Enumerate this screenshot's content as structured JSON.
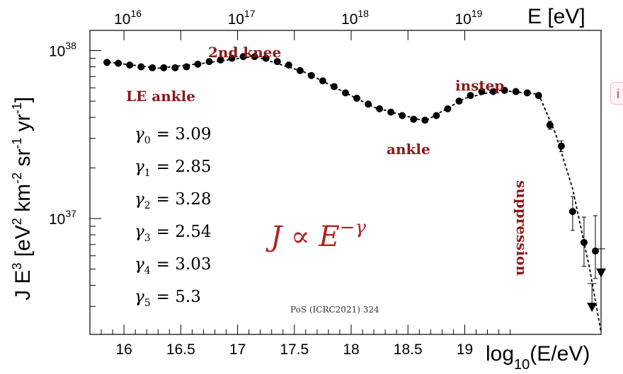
{
  "chart_data": {
    "type": "scatter",
    "title": "",
    "xlabel": "log_10(E/eV)",
    "xlabel_main": "log",
    "xlabel_sub": "10",
    "xlabel_tail": "(E/eV)",
    "top_axis_label": "E [eV]",
    "ylabel": "J E^3 [eV^2 km^-2 sr^-1 yr^-1]",
    "ylabel_parts": [
      "J E",
      "3",
      " [eV",
      "2",
      " km",
      "-2",
      " sr",
      "-1",
      " yr",
      "-1",
      "]"
    ],
    "xlim": [
      15.7,
      20.2
    ],
    "ylim_log10": [
      36.31,
      38.12
    ],
    "y_scale": "log",
    "grid": false,
    "x_ticks": [
      "16",
      "16.5",
      "17",
      "17.5",
      "18",
      "18.5",
      "19"
    ],
    "x_tick_values": [
      16,
      16.5,
      17,
      17.5,
      18,
      18.5,
      19
    ],
    "top_ticks": [
      {
        "base": "10",
        "exp": "16",
        "log": 16
      },
      {
        "base": "10",
        "exp": "17",
        "log": 17
      },
      {
        "base": "10",
        "exp": "18",
        "log": 18
      },
      {
        "base": "10",
        "exp": "19",
        "log": 19
      }
    ],
    "y_ticks": [
      {
        "base": "10",
        "exp": "38",
        "log": 38
      },
      {
        "base": "10",
        "exp": "37",
        "log": 37
      }
    ],
    "points": [
      {
        "x": 15.85,
        "y": 8.5e+37
      },
      {
        "x": 15.95,
        "y": 8.4e+37
      },
      {
        "x": 16.05,
        "y": 8.2e+37
      },
      {
        "x": 16.15,
        "y": 8e+37
      },
      {
        "x": 16.25,
        "y": 7.9e+37
      },
      {
        "x": 16.35,
        "y": 7.9e+37
      },
      {
        "x": 16.45,
        "y": 7.9e+37
      },
      {
        "x": 16.55,
        "y": 8e+37
      },
      {
        "x": 16.65,
        "y": 8.3e+37
      },
      {
        "x": 16.75,
        "y": 8.6e+37
      },
      {
        "x": 16.85,
        "y": 8.8e+37
      },
      {
        "x": 16.95,
        "y": 9e+37
      },
      {
        "x": 17.05,
        "y": 9.2e+37
      },
      {
        "x": 17.15,
        "y": 9.2e+37
      },
      {
        "x": 17.25,
        "y": 9e+37
      },
      {
        "x": 17.35,
        "y": 8.6e+37
      },
      {
        "x": 17.45,
        "y": 8.2e+37
      },
      {
        "x": 17.55,
        "y": 7.6e+37
      },
      {
        "x": 17.65,
        "y": 7.1e+37
      },
      {
        "x": 17.75,
        "y": 6.6e+37
      },
      {
        "x": 17.85,
        "y": 6.1e+37
      },
      {
        "x": 17.95,
        "y": 5.6e+37
      },
      {
        "x": 18.05,
        "y": 5.2e+37
      },
      {
        "x": 18.15,
        "y": 4.8e+37
      },
      {
        "x": 18.25,
        "y": 4.5e+37
      },
      {
        "x": 18.35,
        "y": 4.3e+37
      },
      {
        "x": 18.45,
        "y": 4.1e+37
      },
      {
        "x": 18.55,
        "y": 3.9e+37
      },
      {
        "x": 18.65,
        "y": 3.85e+37
      },
      {
        "x": 18.75,
        "y": 4.1e+37
      },
      {
        "x": 18.85,
        "y": 4.5e+37
      },
      {
        "x": 18.95,
        "y": 5e+37
      },
      {
        "x": 19.05,
        "y": 5.4e+37
      },
      {
        "x": 19.15,
        "y": 5.7e+37
      },
      {
        "x": 19.25,
        "y": 5.7e+37
      },
      {
        "x": 19.35,
        "y": 5.8e+37
      },
      {
        "x": 19.45,
        "y": 5.7e+37
      },
      {
        "x": 19.55,
        "y": 5.6e+37
      },
      {
        "x": 19.65,
        "y": 5.4e+37
      },
      {
        "x": 19.75,
        "y": 3.6e+37,
        "err": 2e+36
      },
      {
        "x": 19.85,
        "y": 2.7e+37,
        "err": 2e+36
      },
      {
        "x": 19.95,
        "y": 1.1e+37,
        "err_up": 2.5e+36,
        "err_dn": 2.5e+36
      },
      {
        "x": 20.05,
        "y": 7.2e+36,
        "err_up": 3e+36,
        "err_dn": 2e+36
      },
      {
        "x": 20.15,
        "y": 6.4e+36,
        "err_up": 4e+36,
        "err_dn": 2e+36
      }
    ],
    "upper_limits": [
      {
        "x": 20.12,
        "y": 3e+36,
        "bar_top": 4.1e+36
      },
      {
        "x": 20.2,
        "y": 4.8e+36,
        "bar_top": 6.6e+36
      }
    ],
    "fit_line": [
      {
        "x": 15.82,
        "y": 8.6e+37
      },
      {
        "x": 16.3,
        "y": 7.85e+37
      },
      {
        "x": 16.7,
        "y": 8.4e+37
      },
      {
        "x": 17.15,
        "y": 9.25e+37
      },
      {
        "x": 17.6,
        "y": 7.4e+37
      },
      {
        "x": 18.2,
        "y": 4.6e+37
      },
      {
        "x": 18.65,
        "y": 3.8e+37
      },
      {
        "x": 19.0,
        "y": 5.2e+37
      },
      {
        "x": 19.3,
        "y": 5.8e+37
      },
      {
        "x": 19.65,
        "y": 5.5e+37
      },
      {
        "x": 19.8,
        "y": 3.2e+37
      },
      {
        "x": 19.95,
        "y": 1.5e+37
      },
      {
        "x": 20.1,
        "y": 5e+36
      },
      {
        "x": 20.2,
        "y": 2.1e+36
      }
    ],
    "annotations": [
      "2nd knee",
      "LE ankle",
      "instep",
      "ankle",
      "suppression"
    ],
    "gamma_labels": [
      {
        "sym": "γ",
        "sub": "0",
        "value": "= 3.09"
      },
      {
        "sym": "γ",
        "sub": "1",
        "value": "= 2.85"
      },
      {
        "sym": "γ",
        "sub": "2",
        "value": "= 3.28"
      },
      {
        "sym": "γ",
        "sub": "3",
        "value": "= 2.54"
      },
      {
        "sym": "γ",
        "sub": "4",
        "value": "= 3.03"
      },
      {
        "sym": "γ",
        "sub": "5",
        "value": "= 5.3"
      }
    ],
    "formula": {
      "lhs": "J ∝ E",
      "exp": "−γ"
    },
    "source": "PoS (ICRC2021) 324",
    "colors": {
      "points": "#000000",
      "annotation": "#8b1a1a",
      "formula": "#b22222"
    }
  },
  "badge": "i"
}
